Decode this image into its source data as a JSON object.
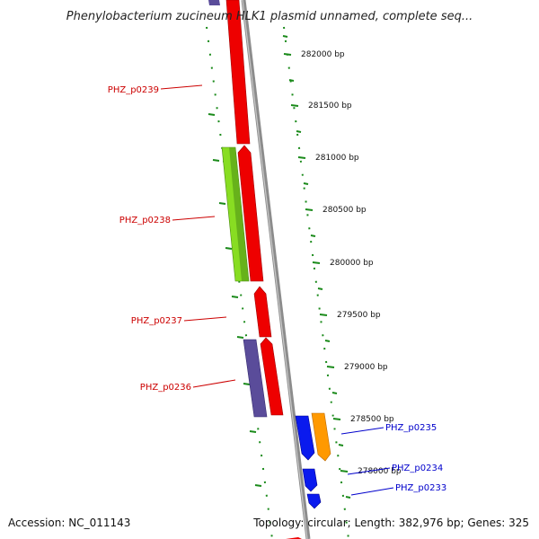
{
  "title": "Phenylobacterium zucineum HLK1 plasmid unnamed, complete seq...",
  "footer": {
    "accession": "Accession: NC_011143",
    "summary": "Topology: circular; Length: 382,976 bp; Genes: 325"
  },
  "colors": {
    "background": "#ffffff",
    "backbone": "#8c8c8c",
    "guide_dots": "#1a8a1a",
    "reverse_label": "#cc0000",
    "forward_label": "#0000cc",
    "red_feature": "#ee0000",
    "purple_feature": "#5a4c9a",
    "lime_feature": "#88dd22",
    "blue_feature": "#0a1aee",
    "orange_feature": "#ff9900"
  },
  "axis_labels": [
    "282000 bp",
    "281500 bp",
    "281000 bp",
    "280500 bp",
    "280000 bp",
    "279500 bp",
    "279000 bp",
    "278500 bp",
    "278000 bp"
  ],
  "genes": [
    {
      "name": "PHZ_p0239",
      "strand": "reverse"
    },
    {
      "name": "PHZ_p0238",
      "strand": "reverse"
    },
    {
      "name": "PHZ_p0237",
      "strand": "reverse"
    },
    {
      "name": "PHZ_p0236",
      "strand": "reverse"
    },
    {
      "name": "PHZ_p0235",
      "strand": "forward"
    },
    {
      "name": "PHZ_p0234",
      "strand": "forward"
    },
    {
      "name": "PHZ_p0233",
      "strand": "forward"
    }
  ]
}
